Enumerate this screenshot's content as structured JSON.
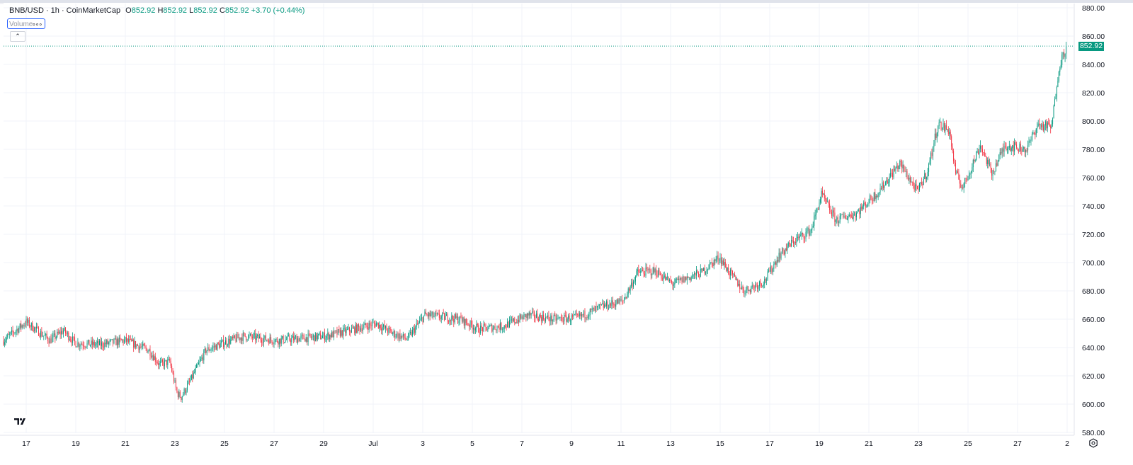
{
  "legend": {
    "symbol": "BNB/USD · 1h · CoinMarketCap",
    "o_label": "O",
    "o": "852.92",
    "h_label": "H",
    "h": "852.92",
    "l_label": "L",
    "l": "852.92",
    "c_label": "C",
    "c": "852.92",
    "change": "+3.70 (+0.44%)"
  },
  "volume_indicator": {
    "label": "Volume",
    "menu_icon": "more-dots-icon"
  },
  "collapse_icon": "chevron-up-icon",
  "current_price_label": "852.92",
  "settings_icon": "gear-icon",
  "logo": "TV",
  "colors": {
    "up": "#089981",
    "down": "#f23645",
    "grid": "#f0f3fa",
    "axis_text": "#131722",
    "price_line": "#089981"
  },
  "chart_data": {
    "type": "candlestick",
    "interval": "1h",
    "title": "BNB/USD · 1h · CoinMarketCap",
    "ylim": [
      580,
      880
    ],
    "y_ticks": [
      "880.00",
      "860.00",
      "840.00",
      "820.00",
      "800.00",
      "780.00",
      "760.00",
      "740.00",
      "720.00",
      "700.00",
      "680.00",
      "660.00",
      "640.00",
      "620.00",
      "600.00",
      "580.00"
    ],
    "x_ticks": [
      {
        "label": "17",
        "t": "06-17 00:00"
      },
      {
        "label": "19",
        "t": "06-19 00:00"
      },
      {
        "label": "21",
        "t": "06-21 00:00"
      },
      {
        "label": "23",
        "t": "06-23 00:00"
      },
      {
        "label": "25",
        "t": "06-25 00:00"
      },
      {
        "label": "27",
        "t": "06-27 00:00"
      },
      {
        "label": "29",
        "t": "06-29 00:00"
      },
      {
        "label": "Jul",
        "t": "07-01 00:00"
      },
      {
        "label": "3",
        "t": "07-03 00:00"
      },
      {
        "label": "5",
        "t": "07-05 00:00"
      },
      {
        "label": "7",
        "t": "07-07 00:00"
      },
      {
        "label": "9",
        "t": "07-09 00:00"
      },
      {
        "label": "11",
        "t": "07-11 00:00"
      },
      {
        "label": "13",
        "t": "07-13 00:00"
      },
      {
        "label": "15",
        "t": "07-15 00:00"
      },
      {
        "label": "17",
        "t": "07-17 00:00"
      },
      {
        "label": "19",
        "t": "07-19 00:00"
      },
      {
        "label": "21",
        "t": "07-21 00:00"
      },
      {
        "label": "23",
        "t": "07-23 00:00"
      },
      {
        "label": "25",
        "t": "07-25 00:00"
      },
      {
        "label": "27",
        "t": "07-27 00:00"
      },
      {
        "label": "2",
        "t": "07-29 00:00"
      }
    ],
    "grid": true,
    "last_price": 852.92,
    "approx_closes": [
      [
        "06-16 02:00",
        645
      ],
      [
        "06-17 00:00",
        658
      ],
      [
        "06-17 23:00",
        645
      ],
      [
        "06-18 12:00",
        652
      ],
      [
        "06-19 00:00",
        643
      ],
      [
        "06-19 23:00",
        642
      ],
      [
        "06-21 00:00",
        645
      ],
      [
        "06-21 23:00",
        638
      ],
      [
        "06-22 09:00",
        628
      ],
      [
        "06-22 19:00",
        630
      ],
      [
        "06-23 02:00",
        608
      ],
      [
        "06-23 06:00",
        605
      ],
      [
        "06-23 16:00",
        618
      ],
      [
        "06-24 06:00",
        638
      ],
      [
        "06-25 02:00",
        644
      ],
      [
        "06-25 19:00",
        648
      ],
      [
        "06-27 02:00",
        645
      ],
      [
        "06-29 02:00",
        648
      ],
      [
        "06-30 06:00",
        653
      ],
      [
        "07-01 03:00",
        657
      ],
      [
        "07-01 19:00",
        650
      ],
      [
        "07-02 09:00",
        646
      ],
      [
        "07-03 02:00",
        663
      ],
      [
        "07-04 12:00",
        660
      ],
      [
        "07-05 06:00",
        653
      ],
      [
        "07-06 06:00",
        655
      ],
      [
        "07-07 06:00",
        663
      ],
      [
        "07-08 06:00",
        660
      ],
      [
        "07-09 06:00",
        661
      ],
      [
        "07-10 06:00",
        669
      ],
      [
        "07-11 02:00",
        673
      ],
      [
        "07-11 16:00",
        693
      ],
      [
        "07-12 09:00",
        694
      ],
      [
        "07-13 02:00",
        685
      ],
      [
        "07-14 06:00",
        693
      ],
      [
        "07-14 23:00",
        704
      ],
      [
        "07-15 09:00",
        693
      ],
      [
        "07-15 23:00",
        680
      ],
      [
        "07-16 19:00",
        687
      ],
      [
        "07-17 09:00",
        705
      ],
      [
        "07-17 23:00",
        715
      ],
      [
        "07-18 16:00",
        723
      ],
      [
        "07-19 02:00",
        748
      ],
      [
        "07-19 16:00",
        730
      ],
      [
        "07-20 12:00",
        735
      ],
      [
        "07-21 09:00",
        750
      ],
      [
        "07-22 06:00",
        770
      ],
      [
        "07-22 23:00",
        750
      ],
      [
        "07-23 09:00",
        765
      ],
      [
        "07-23 19:00",
        798
      ],
      [
        "07-24 06:00",
        793
      ],
      [
        "07-24 12:00",
        763
      ],
      [
        "07-24 19:00",
        753
      ],
      [
        "07-25 12:00",
        783
      ],
      [
        "07-25 23:00",
        763
      ],
      [
        "07-26 12:00",
        783
      ],
      [
        "07-27 09:00",
        780
      ],
      [
        "07-27 19:00",
        797
      ],
      [
        "07-28 09:00",
        796
      ],
      [
        "07-28 16:00",
        838
      ],
      [
        "07-28 23:00",
        852.92
      ]
    ]
  }
}
